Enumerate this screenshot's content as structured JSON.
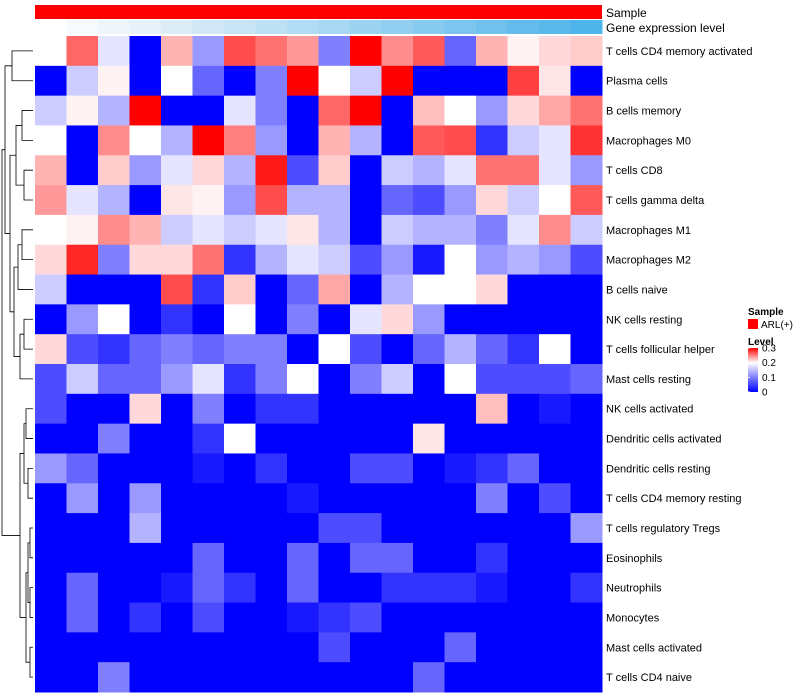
{
  "chart_data": {
    "type": "heatmap",
    "annotations": {
      "sample_title": "Sample",
      "gene_title": "Gene expression level",
      "sample_color": "#ff0000",
      "gene_colors": [
        "#ffffff",
        "#f7fafc",
        "#eef5fb",
        "#e6f1fa",
        "#dcedf8",
        "#d2e8f7",
        "#c8e4f6",
        "#bde0f5",
        "#b2dcf4",
        "#a7d7f2",
        "#9cd3f1",
        "#91cef0",
        "#86caef",
        "#7bc5ee",
        "#70c1ed",
        "#65bcec",
        "#5ab8eb",
        "#4fb4ea"
      ]
    },
    "columns": 18,
    "rows": [
      "T cells CD4 memory activated",
      "Plasma cells",
      "B cells memory",
      "Macrophages M0",
      "T cells CD8",
      "T cells gamma delta",
      "Macrophages M1",
      "Macrophages M2",
      "B cells naive",
      "NK cells resting",
      "T cells follicular helper",
      "Mast cells resting",
      "NK cells activated",
      "Dendritic cells activated",
      "Dendritic cells resting",
      "T cells CD4 memory resting",
      "T cells regulatory  Tregs",
      "Eosinophils",
      "Neutrophils",
      "Monocytes",
      "Mast cells activated",
      "T cells CD4 naive"
    ],
    "values": [
      [
        0.1,
        0.22,
        0.09,
        0.0,
        0.16,
        0.06,
        0.24,
        0.21,
        0.18,
        0.05,
        0.31,
        0.19,
        0.23,
        0.04,
        0.16,
        0.11,
        0.13,
        0.14
      ],
      [
        0.0,
        0.08,
        0.11,
        0.0,
        0.1,
        0.04,
        0.0,
        0.05,
        0.31,
        0.1,
        0.08,
        0.3,
        0.0,
        0.0,
        0.0,
        0.25,
        0.12,
        0.0
      ],
      [
        0.08,
        0.11,
        0.07,
        0.31,
        0.0,
        0.0,
        0.09,
        0.05,
        0.0,
        0.22,
        0.31,
        0.0,
        0.15,
        0.1,
        0.06,
        0.13,
        0.17,
        0.21
      ],
      [
        0.1,
        0.0,
        0.19,
        0.1,
        0.07,
        0.31,
        0.2,
        0.06,
        0.0,
        0.16,
        0.07,
        0.0,
        0.23,
        0.24,
        0.02,
        0.08,
        0.09,
        0.26
      ],
      [
        0.16,
        0.0,
        0.14,
        0.06,
        0.09,
        0.13,
        0.07,
        0.28,
        0.03,
        0.14,
        0.0,
        0.08,
        0.07,
        0.09,
        0.21,
        0.21,
        0.09,
        0.06
      ],
      [
        0.18,
        0.09,
        0.07,
        0.0,
        0.12,
        0.11,
        0.06,
        0.24,
        0.07,
        0.07,
        0.0,
        0.04,
        0.03,
        0.06,
        0.13,
        0.08,
        0.1,
        0.23
      ],
      [
        0.1,
        0.11,
        0.19,
        0.16,
        0.08,
        0.09,
        0.08,
        0.09,
        0.12,
        0.07,
        0.0,
        0.08,
        0.07,
        0.07,
        0.05,
        0.09,
        0.19,
        0.08
      ],
      [
        0.13,
        0.27,
        0.05,
        0.13,
        0.13,
        0.21,
        0.02,
        0.07,
        0.09,
        0.08,
        0.03,
        0.06,
        0.01,
        0.1,
        0.06,
        0.07,
        0.06,
        0.03
      ],
      [
        0.08,
        0.0,
        0.0,
        0.0,
        0.24,
        0.02,
        0.14,
        0.0,
        0.04,
        0.17,
        0.0,
        0.07,
        0.1,
        0.1,
        0.13,
        0.0,
        0.0,
        0.0
      ],
      [
        0.0,
        0.06,
        0.1,
        0.0,
        0.02,
        0.0,
        0.1,
        0.0,
        0.05,
        0.0,
        0.09,
        0.13,
        0.06,
        0.0,
        0.0,
        0.0,
        0.0,
        0.0
      ],
      [
        0.13,
        0.03,
        0.02,
        0.04,
        0.05,
        0.04,
        0.05,
        0.05,
        0.0,
        0.1,
        0.03,
        0.0,
        0.04,
        0.07,
        0.04,
        0.02,
        0.1,
        0.0
      ],
      [
        0.03,
        0.08,
        0.04,
        0.04,
        0.06,
        0.09,
        0.02,
        0.05,
        0.1,
        0.0,
        0.05,
        0.08,
        0.0,
        0.1,
        0.03,
        0.03,
        0.03,
        0.04
      ],
      [
        0.03,
        0.0,
        0.0,
        0.13,
        0.0,
        0.05,
        0.0,
        0.02,
        0.02,
        0.0,
        0.0,
        0.0,
        0.0,
        0.0,
        0.15,
        0.0,
        0.01,
        0.0
      ],
      [
        0.0,
        0.0,
        0.05,
        0.0,
        0.0,
        0.02,
        0.1,
        0.0,
        0.0,
        0.0,
        0.0,
        0.0,
        0.12,
        0.0,
        0.0,
        0.0,
        0.0,
        0.0
      ],
      [
        0.06,
        0.04,
        0.0,
        0.0,
        0.0,
        0.01,
        0.0,
        0.02,
        0.0,
        0.0,
        0.03,
        0.03,
        0.0,
        0.01,
        0.02,
        0.04,
        0.0,
        0.0
      ],
      [
        0.0,
        0.06,
        0.0,
        0.06,
        0.0,
        0.0,
        0.0,
        0.0,
        0.01,
        0.0,
        0.0,
        0.0,
        0.0,
        0.0,
        0.05,
        0.0,
        0.03,
        0.0
      ],
      [
        0.0,
        0.0,
        0.0,
        0.07,
        0.0,
        0.0,
        0.0,
        0.0,
        0.0,
        0.03,
        0.03,
        0.0,
        0.0,
        0.0,
        0.0,
        0.0,
        0.0,
        0.06
      ],
      [
        0.0,
        0.0,
        0.0,
        0.0,
        0.0,
        0.04,
        0.0,
        0.0,
        0.04,
        0.0,
        0.04,
        0.04,
        0.0,
        0.0,
        0.02,
        0.0,
        0.0,
        0.0
      ],
      [
        0.0,
        0.04,
        0.0,
        0.0,
        0.01,
        0.04,
        0.02,
        0.0,
        0.04,
        0.0,
        0.0,
        0.02,
        0.02,
        0.02,
        0.01,
        0.0,
        0.0,
        0.02
      ],
      [
        0.0,
        0.04,
        0.0,
        0.02,
        0.0,
        0.03,
        0.0,
        0.0,
        0.01,
        0.02,
        0.03,
        0.0,
        0.0,
        0.0,
        0.0,
        0.0,
        0.0,
        0.0
      ],
      [
        0.0,
        0.0,
        0.0,
        0.0,
        0.0,
        0.0,
        0.0,
        0.0,
        0.0,
        0.03,
        0.0,
        0.0,
        0.0,
        0.04,
        0.0,
        0.0,
        0.0,
        0.0
      ],
      [
        0.0,
        0.0,
        0.05,
        0.0,
        0.0,
        0.0,
        0.0,
        0.0,
        0.0,
        0.0,
        0.0,
        0.0,
        0.04,
        0.0,
        0.0,
        0.0,
        0.0,
        0.0
      ]
    ],
    "color_scale": {
      "min": 0,
      "max": 0.3,
      "low": "#0000ff",
      "mid": "#ffffff",
      "high": "#ff0000"
    },
    "legend": {
      "sample_title": "Sample",
      "sample_entry": "ARL(+)",
      "level_title": "Level",
      "ticks": [
        {
          "value": 0.3,
          "label": "0.3"
        },
        {
          "value": 0.2,
          "label": "0.2"
        },
        {
          "value": 0.1,
          "label": "0.1"
        },
        {
          "value": 0.0,
          "label": "0"
        }
      ]
    },
    "dendrogram": "row",
    "position": "right"
  }
}
